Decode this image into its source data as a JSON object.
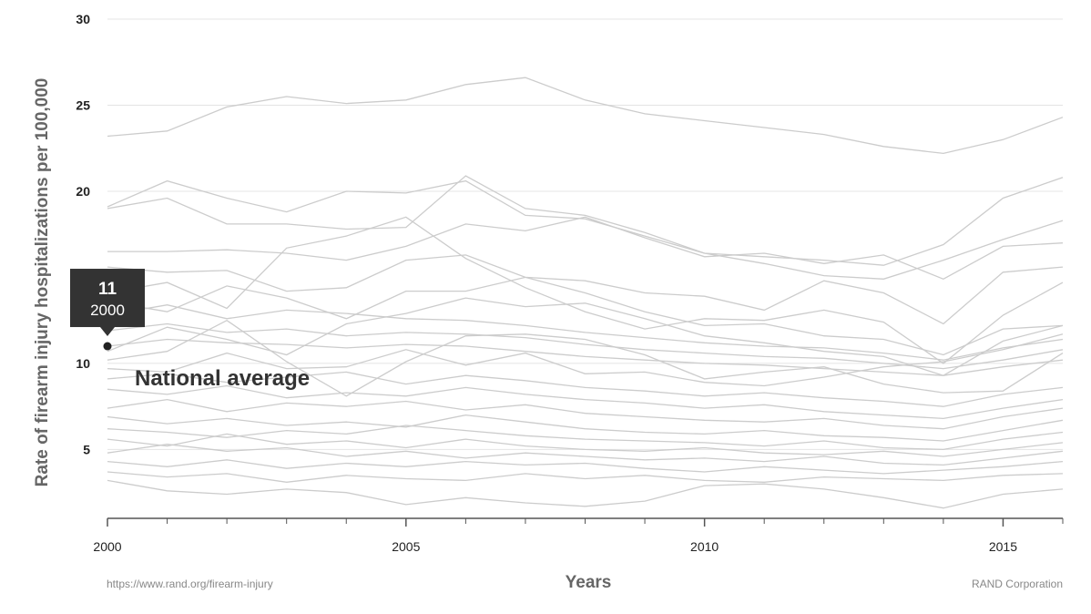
{
  "chart_data": {
    "type": "line",
    "ylabel": "Rate of firearm injury hospitalizations per 100,000",
    "xlabel": "Years",
    "ylim": [
      1,
      30
    ],
    "xlim": [
      2000,
      2016
    ],
    "y_ticks": [
      "30",
      "25",
      "20",
      "10",
      "5"
    ],
    "x_ticks": [
      "2000",
      "2005",
      "2010",
      "2015"
    ],
    "grid": "horizontal",
    "x": [
      2000,
      2001,
      2002,
      2003,
      2004,
      2005,
      2006,
      2007,
      2008,
      2009,
      2010,
      2011,
      2012,
      2013,
      2014,
      2015,
      2016
    ],
    "series": [
      {
        "values": [
          23.2,
          23.5,
          24.9,
          25.5,
          25.1,
          25.3,
          26.2,
          26.6,
          25.3,
          24.5,
          24.1,
          23.7,
          23.3,
          22.6,
          22.2,
          23.0,
          24.3
        ]
      },
      {
        "values": [
          19.1,
          20.6,
          19.6,
          18.8,
          20.0,
          19.9,
          20.6,
          18.6,
          18.4,
          17.4,
          16.4,
          16.2,
          16.0,
          15.7,
          16.9,
          19.6,
          20.8
        ]
      },
      {
        "values": [
          19.0,
          19.6,
          18.1,
          18.1,
          17.8,
          17.9,
          20.9,
          19.0,
          18.6,
          17.6,
          16.4,
          15.8,
          15.1,
          14.9,
          16.0,
          17.2,
          18.3
        ]
      },
      {
        "values": [
          16.5,
          16.5,
          16.6,
          16.4,
          16.0,
          16.8,
          18.1,
          17.7,
          18.5,
          17.3,
          16.2,
          16.4,
          15.8,
          16.3,
          14.9,
          16.8,
          17.0
        ]
      },
      {
        "values": [
          15.6,
          15.3,
          15.4,
          14.2,
          14.4,
          16.0,
          16.3,
          15.0,
          14.8,
          14.1,
          13.9,
          13.1,
          14.8,
          14.1,
          12.3,
          15.3,
          15.6
        ]
      },
      {
        "values": [
          14.1,
          14.7,
          13.2,
          16.7,
          17.4,
          18.5,
          16.1,
          14.4,
          13.0,
          12.0,
          12.6,
          12.5,
          13.1,
          12.4,
          10.0,
          12.8,
          14.7
        ]
      },
      {
        "values": [
          13.6,
          13.0,
          14.5,
          13.8,
          12.6,
          14.2,
          14.2,
          15.0,
          14.1,
          13.0,
          12.2,
          12.3,
          11.6,
          11.4,
          10.5,
          12.0,
          12.2
        ]
      },
      {
        "values": [
          12.8,
          13.4,
          12.6,
          13.1,
          12.9,
          12.6,
          12.5,
          12.2,
          11.8,
          11.5,
          11.2,
          11.0,
          10.9,
          10.6,
          10.2,
          10.9,
          11.4
        ]
      },
      {
        "values": [
          11.9,
          12.3,
          11.8,
          12.0,
          11.6,
          11.8,
          11.7,
          11.5,
          11.1,
          10.8,
          10.6,
          10.4,
          10.3,
          10.0,
          9.7,
          10.2,
          10.8
        ]
      },
      {
        "values": [
          11.0,
          11.4,
          11.2,
          11.1,
          10.9,
          11.1,
          11.0,
          10.7,
          10.4,
          10.2,
          10.0,
          9.9,
          9.7,
          9.5,
          9.3,
          9.8,
          10.2
        ]
      },
      {
        "values": [
          10.7,
          12.1,
          11.4,
          10.5,
          12.3,
          12.9,
          13.8,
          13.3,
          13.5,
          12.6,
          11.6,
          11.2,
          10.7,
          10.4,
          9.3,
          11.3,
          12.2
        ]
      },
      {
        "values": [
          10.2,
          10.7,
          12.5,
          10.1,
          8.1,
          10.1,
          11.6,
          11.7,
          11.4,
          10.5,
          9.1,
          9.5,
          9.8,
          8.8,
          8.3,
          8.4,
          10.6
        ]
      },
      {
        "values": [
          9.7,
          9.5,
          10.6,
          9.7,
          9.8,
          10.8,
          9.9,
          10.6,
          9.4,
          9.5,
          8.9,
          8.7,
          9.2,
          9.8,
          10.1,
          10.8,
          11.7
        ]
      },
      {
        "values": [
          9.1,
          9.4,
          8.9,
          9.2,
          9.5,
          8.8,
          9.3,
          9.0,
          8.6,
          8.4,
          8.1,
          8.3,
          8.0,
          7.8,
          7.5,
          8.2,
          8.6
        ]
      },
      {
        "values": [
          8.5,
          8.2,
          8.7,
          8.0,
          8.3,
          8.1,
          8.6,
          8.2,
          7.9,
          7.7,
          7.4,
          7.6,
          7.2,
          7.0,
          6.8,
          7.4,
          7.9
        ]
      },
      {
        "values": [
          7.4,
          7.9,
          7.2,
          7.7,
          7.5,
          7.8,
          7.3,
          7.6,
          7.1,
          6.9,
          6.7,
          6.6,
          6.8,
          6.4,
          6.2,
          6.9,
          7.4
        ]
      },
      {
        "values": [
          6.9,
          6.5,
          6.8,
          6.4,
          6.6,
          6.3,
          7.0,
          6.6,
          6.2,
          6.0,
          5.9,
          6.1,
          5.8,
          5.7,
          5.5,
          6.1,
          6.7
        ]
      },
      {
        "values": [
          6.2,
          6.0,
          5.7,
          6.1,
          5.9,
          6.4,
          6.1,
          5.8,
          5.6,
          5.5,
          5.4,
          5.2,
          5.5,
          5.1,
          5.0,
          5.6,
          6.0
        ]
      },
      {
        "values": [
          5.6,
          5.2,
          5.9,
          5.3,
          5.5,
          5.1,
          5.6,
          5.2,
          5.0,
          4.9,
          5.1,
          4.8,
          4.7,
          4.9,
          4.6,
          5.0,
          5.4
        ]
      },
      {
        "values": [
          4.8,
          5.3,
          4.9,
          5.1,
          4.6,
          4.9,
          4.5,
          4.8,
          4.6,
          4.4,
          4.5,
          4.3,
          4.6,
          4.2,
          4.1,
          4.5,
          4.9
        ]
      },
      {
        "values": [
          4.3,
          4.0,
          4.4,
          3.9,
          4.2,
          4.0,
          4.3,
          4.1,
          4.2,
          3.9,
          3.7,
          4.0,
          3.8,
          3.6,
          3.8,
          4.0,
          4.3
        ]
      },
      {
        "values": [
          3.7,
          3.4,
          3.6,
          3.1,
          3.5,
          3.3,
          3.2,
          3.6,
          3.3,
          3.5,
          3.2,
          3.1,
          3.4,
          3.3,
          3.2,
          3.5,
          3.6
        ]
      },
      {
        "values": [
          3.2,
          2.6,
          2.4,
          2.7,
          2.5,
          1.8,
          2.2,
          1.9,
          1.7,
          2.0,
          2.9,
          3.0,
          2.7,
          2.2,
          1.6,
          2.4,
          2.7
        ]
      }
    ],
    "national_average": {
      "label": "National average",
      "x": 2000,
      "y": 11,
      "tooltip_value": "11",
      "tooltip_year": "2000"
    },
    "source_url": "https://www.rand.org/firearm-injury",
    "credit": "RAND Corporation",
    "colors": {
      "series_line": "#cccccc",
      "grid": "#e4e4e4",
      "tooltip_bg": "#333333",
      "axis": "#555555"
    }
  }
}
